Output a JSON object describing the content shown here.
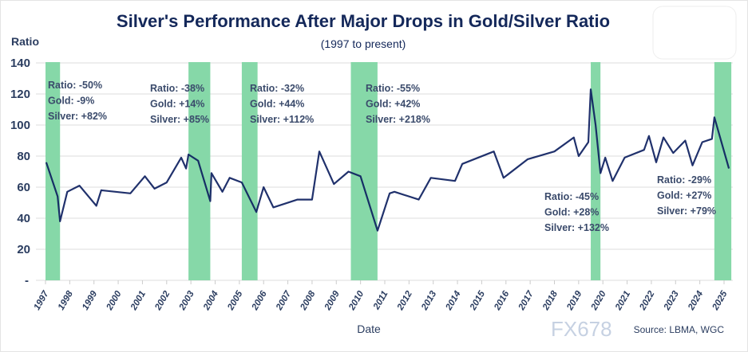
{
  "chart_data": {
    "type": "line",
    "title": "Silver's Performance After Major Drops in Gold/Silver Ratio",
    "subtitle": "(1997 to present)",
    "xlabel": "Date",
    "ylabel": "Ratio",
    "ylim": [
      0,
      140
    ],
    "yticks": [
      0,
      20,
      40,
      60,
      80,
      100,
      120,
      140
    ],
    "ytick_labels": [
      "-",
      "20",
      "40",
      "60",
      "80",
      "100",
      "120",
      "140"
    ],
    "xticks": [
      "1997",
      "1998",
      "1999",
      "2000",
      "2001",
      "2002",
      "2003",
      "2004",
      "2005",
      "2006",
      "2007",
      "2008",
      "2009",
      "2010",
      "2011",
      "2012",
      "2013",
      "2014",
      "2015",
      "2016",
      "2017",
      "2018",
      "2019",
      "2020",
      "2021",
      "2022",
      "2023",
      "2024",
      "2025"
    ],
    "xlim": [
      1997,
      2025.3
    ],
    "grid": "horizontal",
    "line_color": "#0d2060",
    "band_color": "#7fd6a3",
    "series": [
      {
        "x": [
          1997.03,
          1997.5,
          1997.6,
          1997.9,
          1998.4,
          1999.1,
          1999.3,
          2000.5,
          2001.1,
          2001.5,
          2002.0,
          2002.6,
          2002.8,
          2002.9,
          2003.3,
          2003.8,
          2003.85,
          2004.3,
          2004.6,
          2005.1,
          2005.7,
          2006.0,
          2006.4,
          2007.4,
          2008.0,
          2008.3,
          2008.9,
          2009.5,
          2010.0,
          2010.7,
          2011.2,
          2011.4,
          2012.4,
          2012.9,
          2013.9,
          2014.2,
          2015.5,
          2015.9,
          2016.9,
          2018.0,
          2018.8,
          2019.0,
          2019.4,
          2019.5,
          2019.7,
          2019.9,
          2020.1,
          2020.4,
          2020.9,
          2021.7,
          2021.9,
          2022.2,
          2022.5,
          2022.9,
          2023.4,
          2023.7,
          2024.1,
          2024.5,
          2024.6,
          2025.2
        ],
        "y": [
          76,
          54,
          38,
          57,
          61,
          48,
          58,
          56,
          67,
          59,
          63,
          79,
          72,
          81,
          77,
          51,
          69,
          57,
          66,
          63,
          44,
          60,
          47,
          52,
          52,
          83,
          62,
          70,
          67,
          32,
          56,
          57,
          52,
          66,
          64,
          75,
          83,
          66,
          78,
          83,
          92,
          80,
          89,
          123,
          100,
          69,
          79,
          64,
          79,
          84,
          93,
          76,
          92,
          82,
          90,
          74,
          89,
          91,
          105,
          72
        ]
      }
    ],
    "bands": [
      [
        1997.0,
        1997.6
      ],
      [
        2002.9,
        2003.8
      ],
      [
        2005.1,
        2005.75
      ],
      [
        2009.6,
        2010.7
      ],
      [
        2019.5,
        2019.9
      ],
      [
        2024.6,
        2025.3
      ]
    ],
    "annotations": [
      {
        "lines": [
          "Ratio: -50%",
          "Gold: -9%",
          "Silver: +82%"
        ]
      },
      {
        "lines": [
          "Ratio: -38%",
          "Gold: +14%",
          "Silver: +85%"
        ]
      },
      {
        "lines": [
          "Ratio: -32%",
          "Gold: +44%",
          "Silver: +112%"
        ]
      },
      {
        "lines": [
          "Ratio: -55%",
          "Gold: +42%",
          "Silver: +218%"
        ]
      },
      {
        "lines": [
          "Ratio: -45%",
          "Gold: +28%",
          "Silver: +132%"
        ]
      },
      {
        "lines": [
          "Ratio: -29%",
          "Gold: +27%",
          "Silver: +79%"
        ]
      }
    ],
    "source": "Source: LBMA, WGC"
  },
  "watermark": "FX678"
}
